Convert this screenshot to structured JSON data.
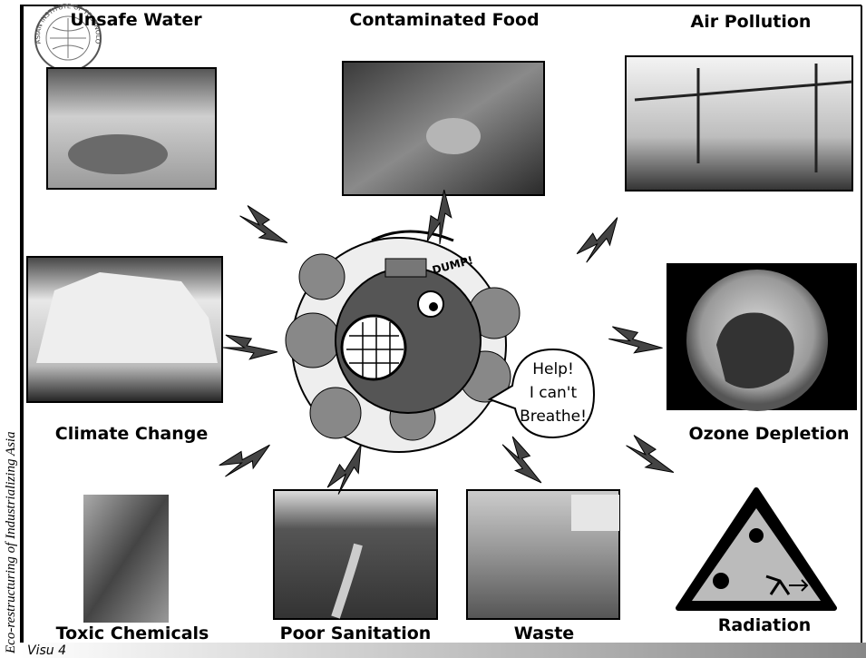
{
  "logo": {
    "text": "ASIAN INSTITUTE OF TECHNOLOGY"
  },
  "sidebar": "Eco-restructuring of Industrializing Asia",
  "slide_number": "Visu 4",
  "cartoon": {
    "sound": "DUMP!",
    "speech": [
      "Help!",
      "I can't",
      "Breathe!"
    ]
  },
  "topics": [
    {
      "label": "Unsafe Water"
    },
    {
      "label": "Contaminated Food"
    },
    {
      "label": "Air Pollution"
    },
    {
      "label": "Climate Change"
    },
    {
      "label": "Ozone Depletion"
    },
    {
      "label": "Toxic Chemicals"
    },
    {
      "label": "Poor Sanitation"
    },
    {
      "label": "Waste"
    },
    {
      "label": "Radiation"
    }
  ]
}
